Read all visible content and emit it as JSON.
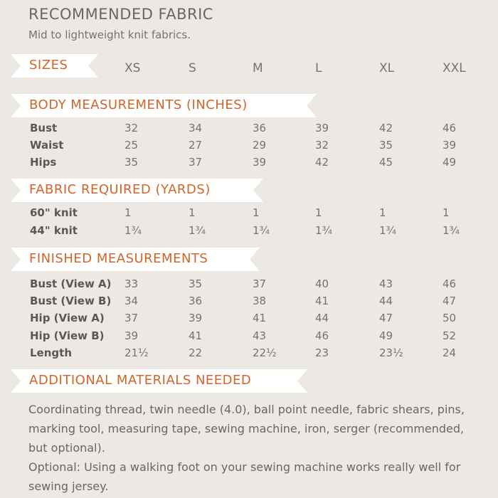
{
  "title": "RECOMMENDED FABRIC",
  "subtitle": "Mid to lightweight knit fabrics.",
  "sizes_label": "SIZES",
  "sizes": [
    "XS",
    "S",
    "M",
    "L",
    "XL",
    "XXL"
  ],
  "body": {
    "heading": "BODY MEASUREMENTS (INCHES)",
    "rows": [
      {
        "label": "Bust",
        "values": [
          "32",
          "34",
          "36",
          "39",
          "42",
          "46"
        ]
      },
      {
        "label": "Waist",
        "values": [
          "25",
          "27",
          "29",
          "32",
          "35",
          "39"
        ]
      },
      {
        "label": "Hips",
        "values": [
          "35",
          "37",
          "39",
          "42",
          "45",
          "49"
        ]
      }
    ]
  },
  "fabric": {
    "heading": "FABRIC REQUIRED (YARDS)",
    "rows": [
      {
        "label": "60\" knit",
        "values": [
          "1",
          "1",
          "1",
          "1",
          "1",
          "1"
        ]
      },
      {
        "label": "44\" knit",
        "values": [
          "1¾",
          "1¾",
          "1¾",
          "1¾",
          "1¾",
          "1¾"
        ]
      }
    ]
  },
  "finished": {
    "heading": "FINISHED MEASUREMENTS",
    "rows": [
      {
        "label": "Bust (View A)",
        "values": [
          "33",
          "35",
          "37",
          "40",
          "43",
          "46"
        ]
      },
      {
        "label": "Bust (View B)",
        "values": [
          "34",
          "36",
          "38",
          "41",
          "44",
          "47"
        ]
      },
      {
        "label": "Hip (View A)",
        "values": [
          "37",
          "39",
          "41",
          "44",
          "47",
          "50"
        ]
      },
      {
        "label": "Hip (View B)",
        "values": [
          "39",
          "41",
          "43",
          "46",
          "49",
          "52"
        ]
      },
      {
        "label": "Length",
        "values": [
          "21½",
          "22",
          "22½",
          "23",
          "23½",
          "24"
        ]
      }
    ]
  },
  "additional": {
    "heading": "ADDITIONAL MATERIALS NEEDED",
    "text": "Coordinating thread, twin needle (4.0), ball point needle, fabric shears, pins, marking tool, measuring tape, sewing machine, iron, serger (recommended, but optional).",
    "text2": "Optional: Using a walking foot on your sewing machine works really well for sewing jersey."
  },
  "colors": {
    "accent": "#d2642a",
    "background": "#ece8e3",
    "text": "#6e665e"
  }
}
